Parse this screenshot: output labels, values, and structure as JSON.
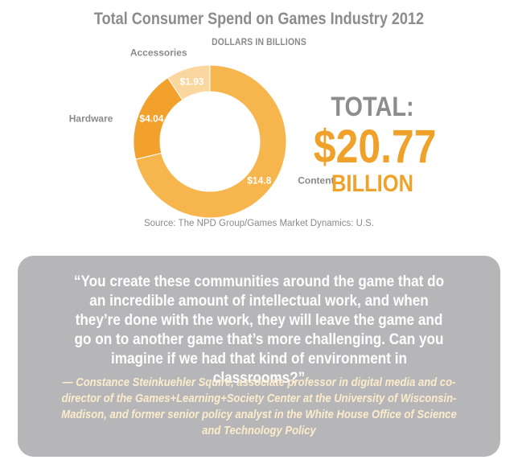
{
  "header": {
    "title": "Total Consumer Spend on Games Industry 2012",
    "subtitle": "DOLLARS IN BILLIONS"
  },
  "chart_data": {
    "type": "pie",
    "title": "Total Consumer Spend on Games Industry 2012",
    "subtitle": "DOLLARS IN BILLIONS",
    "slices": [
      {
        "category": "Content",
        "value": 14.8,
        "label": "$14.8",
        "color": "#f7b54d"
      },
      {
        "category": "Hardware",
        "value": 4.04,
        "label": "$4.04",
        "color": "#f2a12c"
      },
      {
        "category": "Accessories",
        "value": 1.93,
        "label": "$1.93",
        "color": "#fad79e"
      }
    ],
    "style": "donut"
  },
  "total": {
    "label": "TOTAL:",
    "amount": "$20.77",
    "unit": "BILLION"
  },
  "source": "Source: The NPD Group/Games Market Dynamics: U.S.",
  "quote": {
    "text": "“You create these communities around the game that do an incredible amount of intellectual work, and when they’re done with the work, they will leave the game and go on to another game that’s more challenging. Can you imagine if we had that kind of environment in classrooms?”",
    "attribution": "— Constance Steinkuehler Squire, associate professor in digital media and co-director of the Games+Learning+Society Center at the University of Wisconsin-Madison, and former senior policy analyst in the White House Office of Science and Technology Policy"
  },
  "colors": {
    "accent": "#f0a12a",
    "title_gray": "#8c8c8c",
    "quote_box": "#b6b6b9",
    "attribution_text": "#fdeccb"
  }
}
